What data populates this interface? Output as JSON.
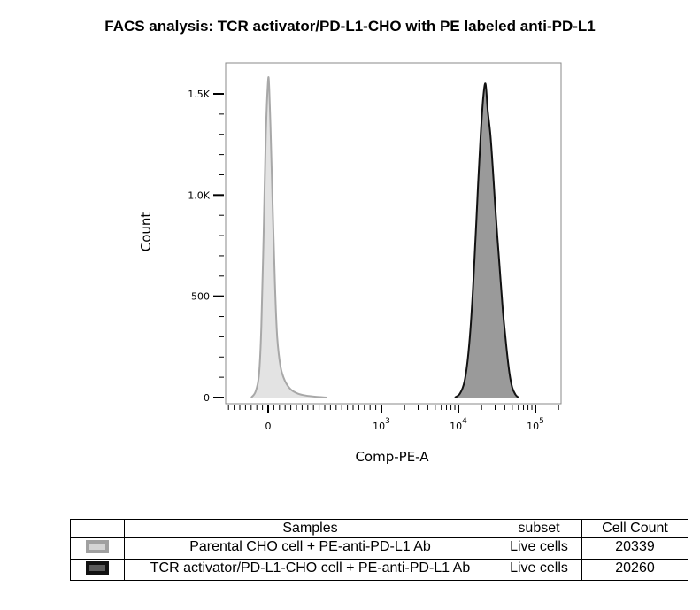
{
  "chart_data": {
    "type": "area",
    "title": "FACS analysis: TCR activator/PD-L1-CHO with PE labeled anti-PD-L1",
    "xlabel": "Comp-PE-A",
    "ylabel": "Count",
    "xscale": "biexponential",
    "y_tick_labels": [
      "0",
      "500",
      "1.0K",
      "1.5K"
    ],
    "y_tick_values": [
      0,
      500,
      1000,
      1500
    ],
    "ylim": [
      0,
      1600
    ],
    "x_tick_labels": [
      {
        "base": "0",
        "exp": "",
        "value": 0
      },
      {
        "base": "10",
        "exp": "3",
        "value": 1000
      },
      {
        "base": "10",
        "exp": "4",
        "value": 10000
      },
      {
        "base": "10",
        "exp": "5",
        "value": 100000
      }
    ],
    "series": [
      {
        "color_fill": "#e3e3e3",
        "color_line": "#a8a8a8",
        "x": [
          -150,
          -110,
          -80,
          -60,
          -40,
          -20,
          0,
          10,
          20,
          40,
          60,
          80,
          110,
          150,
          200,
          260,
          330,
          420,
          520
        ],
        "y": [
          0,
          30,
          120,
          350,
          800,
          1300,
          1570,
          1520,
          1350,
          950,
          560,
          300,
          150,
          80,
          40,
          20,
          10,
          4,
          0
        ]
      },
      {
        "color_fill": "#9a9a9a",
        "color_line": "#111111",
        "x": [
          9000,
          10500,
          12000,
          13500,
          15000,
          16500,
          18000,
          19500,
          21000,
          22500,
          24000,
          26000,
          28000,
          30000,
          32000,
          35000,
          38000,
          42000,
          46000,
          50000,
          55000,
          60000
        ],
        "y": [
          0,
          20,
          80,
          220,
          450,
          750,
          1050,
          1300,
          1480,
          1550,
          1420,
          1300,
          1130,
          950,
          800,
          600,
          420,
          250,
          120,
          50,
          15,
          0
        ]
      }
    ]
  },
  "table": {
    "headers": [
      "",
      "Samples",
      "subset",
      "Cell Count"
    ],
    "rows": [
      {
        "swatch": "light",
        "sample": "Parental CHO cell + PE-anti-PD-L1 Ab",
        "subset": "Live cells",
        "count": "20339"
      },
      {
        "swatch": "dark",
        "sample": "TCR activator/PD-L1-CHO cell + PE-anti-PD-L1 Ab",
        "subset": "Live cells",
        "count": "20260"
      }
    ]
  }
}
